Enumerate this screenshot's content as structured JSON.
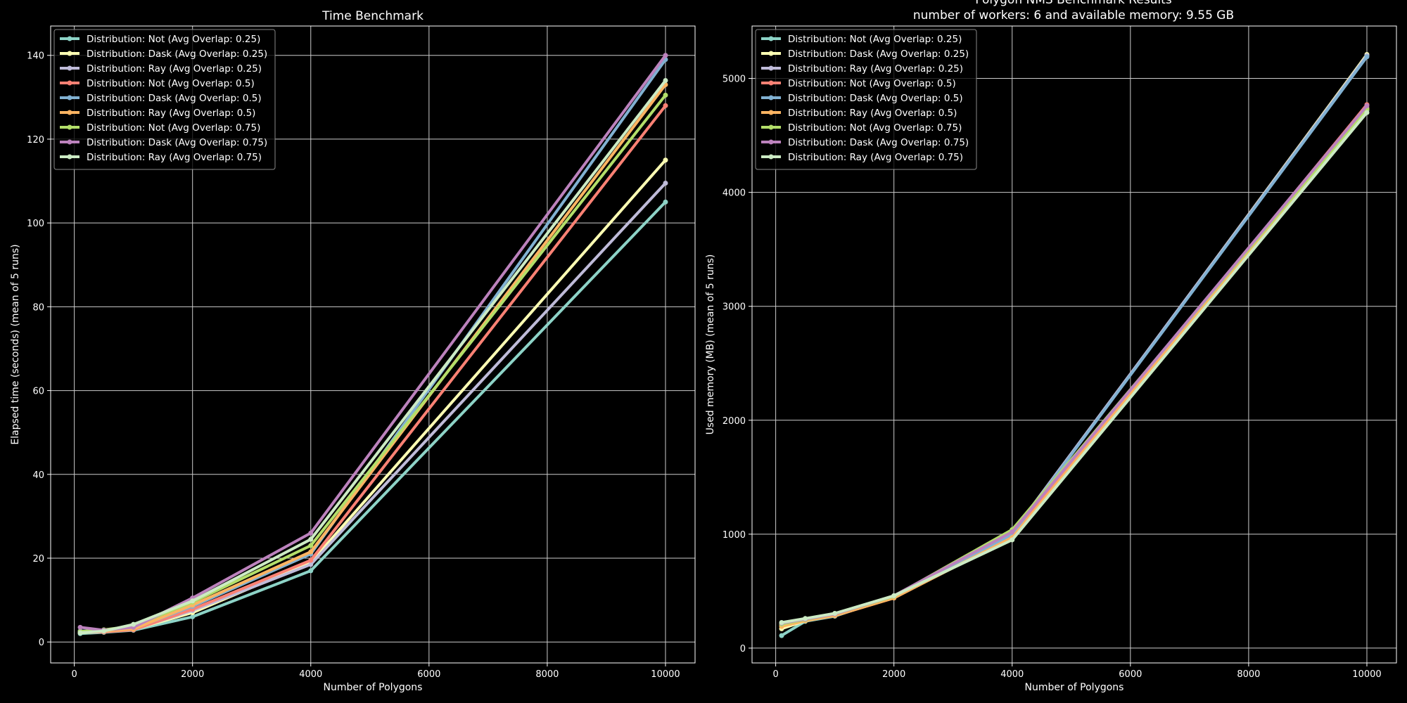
{
  "suptitle_line1": "Polygon NMS Benchmark Results",
  "suptitle_line2": "number of workers: 6 and available memory: 9.55 GB",
  "colors": {
    "background": "#000000",
    "foreground": "#ffffff",
    "grid": "#cccccc"
  },
  "chart_data": [
    {
      "type": "line",
      "title": "Time Benchmark",
      "xlabel": "Number of Polygons",
      "ylabel": "Elapsed time (seconds) (mean of 5 runs)",
      "xlim": [
        -400,
        10500
      ],
      "ylim": [
        -5,
        147
      ],
      "xticks": [
        0,
        2000,
        4000,
        6000,
        8000,
        10000
      ],
      "yticks": [
        0,
        20,
        40,
        60,
        80,
        100,
        120,
        140
      ],
      "grid": true,
      "legend": "top-left",
      "x": [
        100,
        500,
        1000,
        2000,
        4000,
        10000
      ],
      "series": [
        {
          "name": "Distribution: Not (Avg Overlap: 0.25)",
          "color": "#8dd3c7",
          "values": [
            2.0,
            2.3,
            2.8,
            6.0,
            17.0,
            105.0
          ]
        },
        {
          "name": "Distribution: Dask (Avg Overlap: 0.25)",
          "color": "#feffb3",
          "values": [
            2.2,
            2.5,
            3.0,
            7.0,
            19.0,
            115.0
          ]
        },
        {
          "name": "Distribution: Ray (Avg Overlap: 0.25)",
          "color": "#bfbbd9",
          "values": [
            2.5,
            2.7,
            3.0,
            7.5,
            18.5,
            109.5
          ]
        },
        {
          "name": "Distribution: Not (Avg Overlap: 0.5)",
          "color": "#fa8174",
          "values": [
            2.3,
            2.4,
            2.9,
            7.8,
            19.5,
            128.0
          ]
        },
        {
          "name": "Distribution: Dask (Avg Overlap: 0.5)",
          "color": "#81b1d2",
          "values": [
            2.6,
            2.8,
            3.2,
            8.5,
            21.0,
            139.0
          ]
        },
        {
          "name": "Distribution: Ray (Avg Overlap: 0.5)",
          "color": "#fdb462",
          "values": [
            2.4,
            2.6,
            3.1,
            8.8,
            21.5,
            133.0
          ]
        },
        {
          "name": "Distribution: Not (Avg Overlap: 0.75)",
          "color": "#b3de69",
          "values": [
            2.5,
            2.9,
            3.8,
            9.5,
            23.0,
            130.5
          ]
        },
        {
          "name": "Distribution: Dask (Avg Overlap: 0.75)",
          "color": "#bc82bd",
          "values": [
            3.5,
            2.8,
            3.5,
            10.5,
            26.0,
            140.0
          ]
        },
        {
          "name": "Distribution: Ray (Avg Overlap: 0.75)",
          "color": "#ccebc4",
          "values": [
            2.2,
            2.6,
            4.2,
            9.8,
            24.5,
            134.0
          ]
        }
      ]
    },
    {
      "type": "line",
      "title": "",
      "xlabel": "Number of Polygons",
      "ylabel": "Used memory (MB) (mean of 5 runs)",
      "xlim": [
        -400,
        10500
      ],
      "ylim": [
        -130,
        5460
      ],
      "xticks": [
        0,
        2000,
        4000,
        6000,
        8000,
        10000
      ],
      "yticks": [
        0,
        1000,
        2000,
        3000,
        4000,
        5000
      ],
      "grid": true,
      "legend": "top-left",
      "x": [
        100,
        500,
        1000,
        2000,
        4000,
        10000
      ],
      "series": [
        {
          "name": "Distribution: Not (Avg Overlap: 0.25)",
          "color": "#8dd3c7",
          "values": [
            110,
            235,
            280,
            450,
            960,
            4720
          ]
        },
        {
          "name": "Distribution: Dask (Avg Overlap: 0.25)",
          "color": "#feffb3",
          "values": [
            170,
            240,
            290,
            445,
            1000,
            5210
          ]
        },
        {
          "name": "Distribution: Ray (Avg Overlap: 0.25)",
          "color": "#bfbbd9",
          "values": [
            215,
            250,
            300,
            455,
            1010,
            5200
          ]
        },
        {
          "name": "Distribution: Not (Avg Overlap: 0.5)",
          "color": "#fa8174",
          "values": [
            200,
            245,
            285,
            440,
            980,
            4770
          ]
        },
        {
          "name": "Distribution: Dask (Avg Overlap: 0.5)",
          "color": "#81b1d2",
          "values": [
            205,
            250,
            295,
            450,
            1000,
            5190
          ]
        },
        {
          "name": "Distribution: Ray (Avg Overlap: 0.5)",
          "color": "#fdb462",
          "values": [
            190,
            240,
            285,
            440,
            970,
            4740
          ]
        },
        {
          "name": "Distribution: Not (Avg Overlap: 0.75)",
          "color": "#b3de69",
          "values": [
            210,
            250,
            300,
            455,
            1040,
            4730
          ]
        },
        {
          "name": "Distribution: Dask (Avg Overlap: 0.75)",
          "color": "#bc82bd",
          "values": [
            220,
            255,
            300,
            460,
            1020,
            4760
          ]
        },
        {
          "name": "Distribution: Ray (Avg Overlap: 0.75)",
          "color": "#ccebc4",
          "values": [
            225,
            260,
            305,
            460,
            950,
            4700
          ]
        }
      ]
    }
  ]
}
